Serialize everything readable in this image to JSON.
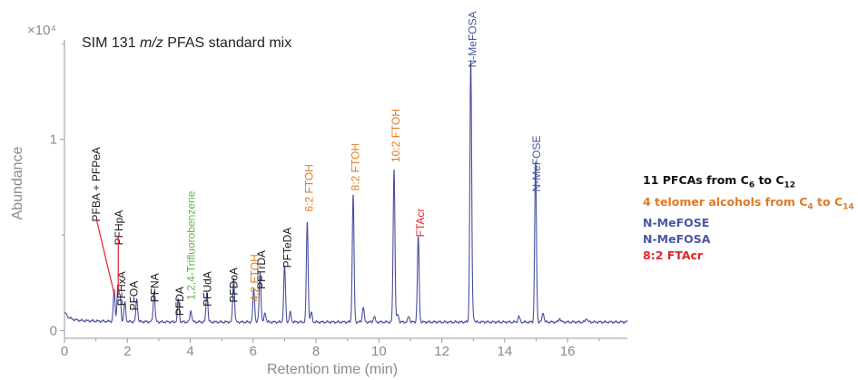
{
  "chart_data": {
    "type": "line",
    "title_pre": "SIM 131 ",
    "title_italic": "m/z",
    "title_post": " PFAS standard mix",
    "xlabel": "Retention time (min)",
    "ylabel": "Abundance",
    "y_multiplier": "×10⁴",
    "xlim": [
      0,
      17.9
    ],
    "ylim": [
      -0.04,
      1.52
    ],
    "x_ticks": [
      0,
      2,
      4,
      6,
      8,
      10,
      12,
      14,
      16
    ],
    "y_ticks": [
      0,
      1
    ],
    "baseline": 0.045,
    "colors": {
      "trace": "#4a4f9e",
      "pfca": "#1a1a1a",
      "ftoh": "#e07b22",
      "fose": "#4a55a4",
      "ftacr": "#e5232b",
      "internal": "#6ab04c"
    },
    "peaks": [
      {
        "name": "PFBA",
        "rt": 1.58,
        "height": 0.16,
        "label": ""
      },
      {
        "name": "PFPeA",
        "rt": 1.7,
        "height": 0.19,
        "label": ""
      },
      {
        "name": "PFHpA",
        "rt": 1.77,
        "height": 0.13,
        "label": ""
      },
      {
        "name": "PFHxA",
        "rt": 1.92,
        "height": 0.1,
        "label": ""
      },
      {
        "name": "PFOA",
        "rt": 2.3,
        "height": 0.12,
        "label": ""
      },
      {
        "name": "PFNA",
        "rt": 2.85,
        "height": 0.16,
        "label": ""
      },
      {
        "name": "PFDA",
        "rt": 3.62,
        "height": 0.12,
        "label": ""
      },
      {
        "name": "1,2,4-Trifluorobenzene",
        "rt": 4.02,
        "height": 0.06,
        "label": ""
      },
      {
        "name": "PFUdA",
        "rt": 4.53,
        "height": 0.16,
        "label": ""
      },
      {
        "name": "PFDoA",
        "rt": 5.38,
        "height": 0.23,
        "label": ""
      },
      {
        "name": "4:2 FTOH",
        "rt": 6.02,
        "height": 0.17,
        "label": ""
      },
      {
        "name": "PFTrDA",
        "rt": 6.22,
        "height": 0.26,
        "label": ""
      },
      {
        "name": "PFTeDA",
        "rt": 7.0,
        "height": 0.29,
        "label": ""
      },
      {
        "name": "6:2 FTOH",
        "rt": 7.72,
        "height": 0.52,
        "label": ""
      },
      {
        "name": "8:2 FTOH",
        "rt": 9.18,
        "height": 0.66,
        "label": ""
      },
      {
        "name": "10:2 FTOH",
        "rt": 10.48,
        "height": 0.8,
        "label": ""
      },
      {
        "name": "FTAcr",
        "rt": 11.25,
        "height": 0.44,
        "label": ""
      },
      {
        "name": "N-MeFOSA",
        "rt": 12.92,
        "height": 1.36,
        "label": ""
      },
      {
        "name": "N-MeFOSE",
        "rt": 14.98,
        "height": 0.83,
        "label": ""
      }
    ],
    "minor_peaks": [
      {
        "rt": 6.38,
        "height": 0.05
      },
      {
        "rt": 7.18,
        "height": 0.05
      },
      {
        "rt": 7.85,
        "height": 0.05
      },
      {
        "rt": 9.5,
        "height": 0.08
      },
      {
        "rt": 9.85,
        "height": 0.03
      },
      {
        "rt": 10.6,
        "height": 0.04
      },
      {
        "rt": 10.95,
        "height": 0.03
      },
      {
        "rt": 13.0,
        "height": 0.03
      },
      {
        "rt": 14.45,
        "height": 0.03
      },
      {
        "rt": 15.22,
        "height": 0.05
      },
      {
        "rt": 15.75,
        "height": 0.02
      },
      {
        "rt": 16.6,
        "height": 0.02
      }
    ],
    "peak_labels": [
      {
        "text": "PFBA + PFPeA",
        "rt": 1.12,
        "top": 0.96,
        "color": "pfca"
      },
      {
        "text": "PFHpA",
        "rt": 1.85,
        "top": 0.63,
        "color": "pfca"
      },
      {
        "text": "PFHxA",
        "rt": 1.93,
        "top": 0.31,
        "color": "pfca"
      },
      {
        "text": "PFOA",
        "rt": 2.33,
        "top": 0.26,
        "color": "pfca"
      },
      {
        "text": "PFNA",
        "rt": 2.99,
        "top": 0.3,
        "color": "pfca"
      },
      {
        "text": "PFDA",
        "rt": 3.78,
        "top": 0.23,
        "color": "pfca"
      },
      {
        "text": "1,2,4-Trifluorobenzene",
        "rt": 4.14,
        "top": 0.73,
        "color": "internal"
      },
      {
        "text": "PFUdA",
        "rt": 4.67,
        "top": 0.31,
        "color": "pfca"
      },
      {
        "text": "PFDoA",
        "rt": 5.5,
        "top": 0.33,
        "color": "pfca"
      },
      {
        "text": "4:2 FTOH",
        "rt": 6.16,
        "top": 0.4,
        "color": "ftoh"
      },
      {
        "text": "PFTrDA",
        "rt": 6.38,
        "top": 0.42,
        "color": "pfca"
      },
      {
        "text": "PFTeDA",
        "rt": 7.2,
        "top": 0.54,
        "color": "pfca"
      },
      {
        "text": "6:2 FTOH",
        "rt": 7.9,
        "top": 0.87,
        "color": "ftoh"
      },
      {
        "text": "8:2 FTOH",
        "rt": 9.37,
        "top": 0.98,
        "color": "ftoh"
      },
      {
        "text": "10:2 FTOH",
        "rt": 10.66,
        "top": 1.16,
        "color": "ftoh"
      },
      {
        "text": "FTAcr",
        "rt": 11.43,
        "top": 0.64,
        "color": "ftacr"
      },
      {
        "text": "N-MeFOSA",
        "rt": 13.1,
        "top": 1.67,
        "color": "fose"
      },
      {
        "text": "N-MeFOSE",
        "rt": 15.13,
        "top": 1.02,
        "color": "fose"
      }
    ],
    "legend": [
      {
        "pre": "11 PFCAs from C",
        "sub1": "6",
        "mid": " to C",
        "sub2": "12",
        "color": "#111111"
      },
      {
        "pre": "4 telomer alcohols from C",
        "sub1": "4",
        "mid": " to C",
        "sub2": "14",
        "color": "#e07b22"
      },
      {
        "pre": "N-MeFOSE",
        "sub1": "",
        "mid": "",
        "sub2": "",
        "color": "#4a55a4"
      },
      {
        "pre": "N-MeFOSA",
        "sub1": "",
        "mid": "",
        "sub2": "",
        "color": "#4a55a4"
      },
      {
        "pre": "8:2 FTAcr",
        "sub1": "",
        "mid": "",
        "sub2": "",
        "color": "#e5232b"
      }
    ]
  }
}
